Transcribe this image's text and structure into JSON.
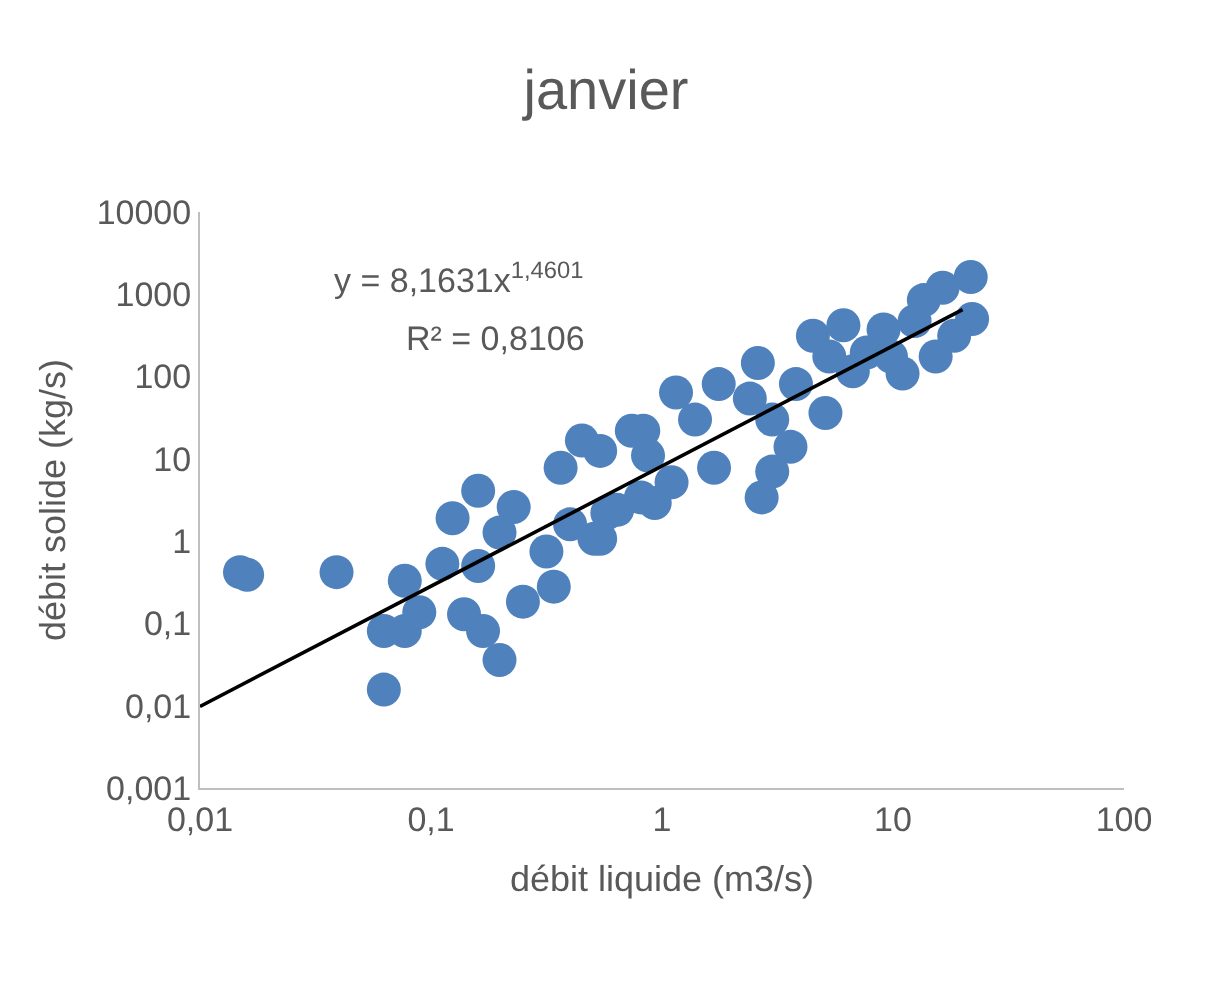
{
  "chart_data": {
    "type": "scatter",
    "title": "janvier",
    "xlabel": "débit liquide (m3/s)",
    "ylabel": "débit solide (kg/s)",
    "annotations": [
      "y = 8,1631x$^{1,4601}$",
      "R² = 0,8106"
    ],
    "log": "xy",
    "marker": "circle",
    "xlim": [
      0.01,
      100
    ],
    "ylim": [
      0.001,
      10000
    ],
    "xticks": [
      {
        "value": 0.01,
        "label": "0,01"
      },
      {
        "value": 0.1,
        "label": "0,1"
      },
      1,
      10,
      100
    ],
    "yticks": [
      {
        "value": 0.001,
        "label": "0,001"
      },
      {
        "value": 0.01,
        "label": "0,01"
      },
      {
        "value": 0.1,
        "label": "0,1"
      },
      1,
      10,
      100,
      1000,
      10000
    ],
    "series": [
      {
        "color": "#4f81bd",
        "x": [
          0.0149,
          0.016,
          0.039,
          0.077,
          0.0625,
          0.077,
          0.0625,
          0.198,
          0.16,
          0.124,
          0.112,
          0.089,
          0.139,
          0.168,
          0.228,
          0.198,
          0.16,
          0.25,
          0.34,
          0.316,
          0.4,
          0.364,
          0.45,
          0.54,
          0.74,
          0.64,
          0.51,
          0.81,
          0.83,
          0.87,
          0.58,
          0.54,
          0.93,
          1.1,
          1.15,
          1.76,
          1.39,
          1.68,
          2.6,
          2.4,
          3.0,
          3.6,
          2.7,
          3.0,
          4.5,
          6.1,
          5.3,
          6.7,
          5.1,
          3.8,
          9.1,
          12.4,
          11,
          15.3,
          13.6,
          16.4,
          21.7,
          22,
          18.4,
          7.7,
          9.8
        ],
        "values": [
          0.42,
          0.39,
          0.42,
          0.33,
          0.081,
          0.081,
          0.0157,
          0.036,
          4.1,
          1.9,
          0.53,
          0.137,
          0.129,
          0.081,
          2.6,
          1.27,
          0.5,
          0.184,
          0.28,
          0.75,
          1.6,
          7.8,
          16.7,
          12.5,
          22,
          2.4,
          1.07,
          3.4,
          22,
          11,
          2.2,
          1.07,
          2.9,
          5.2,
          64,
          81,
          30,
          7.8,
          146,
          54,
          30,
          14,
          3.4,
          7.0,
          313,
          420,
          175,
          116,
          36,
          81,
          374,
          472,
          109,
          175,
          850,
          1200,
          1620,
          500,
          313,
          196,
          175
        ]
      },
      {
        "type": "line",
        "color": "#000000",
        "marker": "none",
        "line_style": "solid",
        "x": [
          0.01,
          20
        ],
        "values": [
          0.0098,
          650
        ]
      }
    ]
  }
}
